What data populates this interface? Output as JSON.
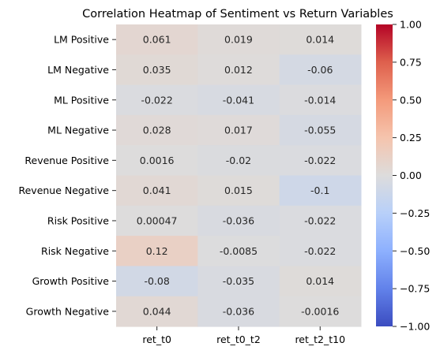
{
  "chart_data": {
    "type": "heatmap",
    "title": "Correlation Heatmap of Sentiment vs Return Variables",
    "columns": [
      "ret_t0",
      "ret_t0_t2",
      "ret_t2_t10"
    ],
    "rows": [
      "LM Positive",
      "LM Negative",
      "ML Positive",
      "ML Negative",
      "Revenue Positive",
      "Revenue Negative",
      "Risk Positive",
      "Risk Negative",
      "Growth Positive",
      "Growth Negative"
    ],
    "values": [
      [
        0.061,
        0.019,
        0.014
      ],
      [
        0.035,
        0.012,
        -0.06
      ],
      [
        -0.022,
        -0.041,
        -0.014
      ],
      [
        0.028,
        0.017,
        -0.055
      ],
      [
        0.0016,
        -0.02,
        -0.022
      ],
      [
        0.041,
        0.015,
        -0.1
      ],
      [
        0.00047,
        -0.036,
        -0.022
      ],
      [
        0.12,
        -0.0085,
        -0.022
      ],
      [
        -0.08,
        -0.035,
        0.014
      ],
      [
        0.044,
        -0.036,
        -0.0016
      ]
    ],
    "value_labels": [
      [
        "0.061",
        "0.019",
        "0.014"
      ],
      [
        "0.035",
        "0.012",
        "-0.06"
      ],
      [
        "-0.022",
        "-0.041",
        "-0.014"
      ],
      [
        "0.028",
        "0.017",
        "-0.055"
      ],
      [
        "0.0016",
        "-0.02",
        "-0.022"
      ],
      [
        "0.041",
        "0.015",
        "-0.1"
      ],
      [
        "0.00047",
        "-0.036",
        "-0.022"
      ],
      [
        "0.12",
        "-0.0085",
        "-0.022"
      ],
      [
        "-0.08",
        "-0.035",
        "0.014"
      ],
      [
        "0.044",
        "-0.036",
        "-0.0016"
      ]
    ],
    "colormap": "coolwarm",
    "vmin": -1.0,
    "vmax": 1.0,
    "colorbar_ticks": [
      "1.00",
      "0.75",
      "0.50",
      "0.25",
      "0.00",
      "−0.25",
      "−0.50",
      "−0.75",
      "−1.00"
    ],
    "colorbar_tick_values": [
      1.0,
      0.75,
      0.5,
      0.25,
      0.0,
      -0.25,
      -0.5,
      -0.75,
      -1.0
    ],
    "colors": {
      "low": "#3b4cc0",
      "mid": "#dddcdc",
      "high": "#b40426"
    }
  }
}
